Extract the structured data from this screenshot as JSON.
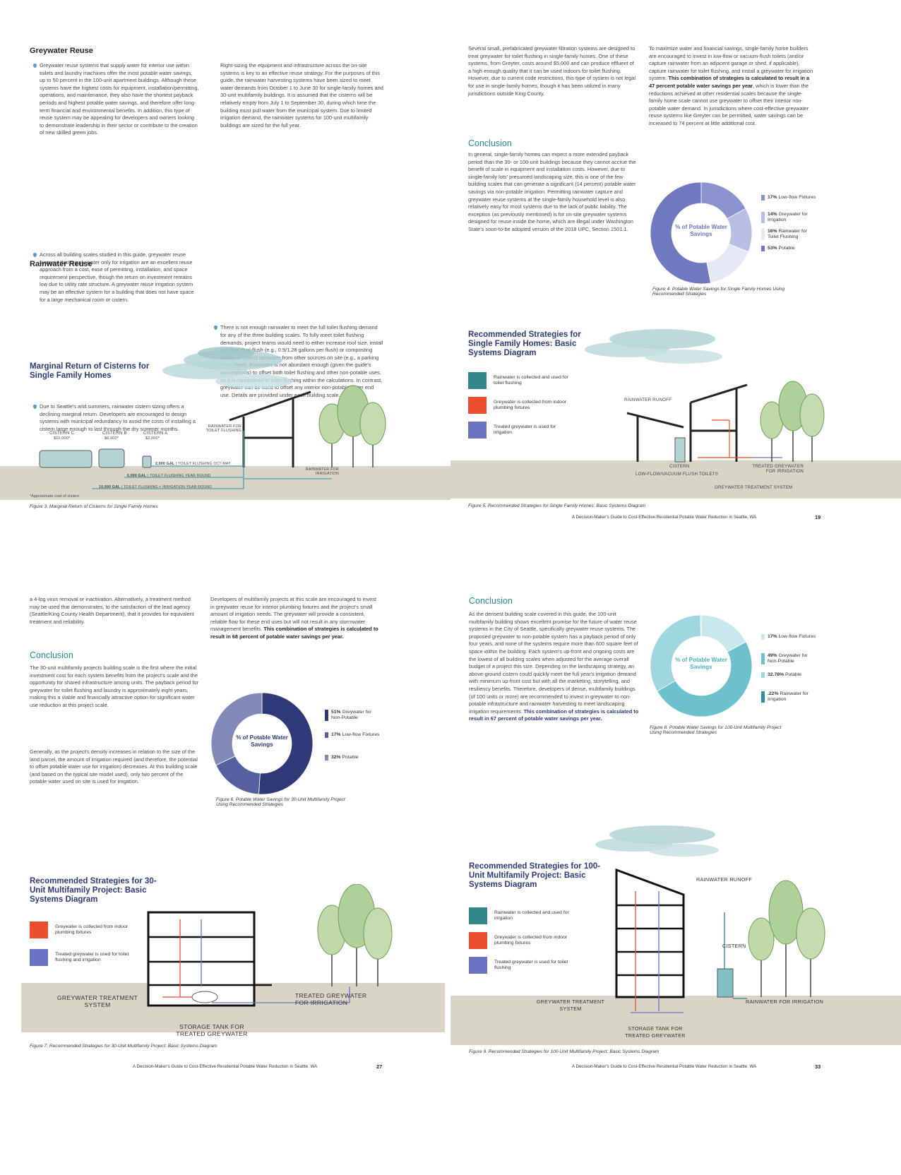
{
  "p18": {
    "heading_greywater": "Greywater Reuse",
    "bullet1": "Greywater reuse systems that supply water for interior use within toilets and laundry machines offer the most potable water savings, up to 50 percent in the 100-unit apartment buildings. Although these systems have the highest costs for equipment, installation/permitting, operations, and maintenance, they also have the shortest payback periods and highest potable water savings, and therefore offer long-term financial and environmental benefits. In addition, this type of reuse system may be appealing for developers and owners looking to demonstrate leadership in their sector or contribute to the creation of new skilled green jobs.",
    "bullet2": "Across all building scales studied in this guide, greywater reuse systems that supply water only for irrigation are an excellent reuse approach from a cost, ease of permitting, installation, and space requirement perspective, though the return on investment remains low due to utility rate structure. A greywater reuse irrigation system may be an effective system for a building that does not have space for a large mechanical room or cistern.",
    "heading_rainwater": "Rainwater Reuse",
    "bullet3": "Due to Seattle's arid summers, rainwater cistern sizing offers a declining marginal return. Developers are encouraged to design systems with municipal redundancy to avoid the costs of installing a cistern large enough to last through the dry summer months.",
    "col2_para": "Right-sizing the equipment and infrastructure across the on-site systems is key to an effective reuse strategy. For the purposes of this guide, the rainwater harvesting systems have been sized to meet water demands from October 1 to June 30 for single-family homes and 30-unit multifamily buildings. It is assumed that the cisterns will be relatively empty from July 1 to September 30, during which time the building must pull water from the municipal system. Due to limited irrigation demand, the rainwater systems for 100-unit multifamily buildings are sized for the full year.",
    "col2_bullet": "There is not enough rainwater to meet the full toilet flushing demand for any of the three building scales. To fully meet toilet flushing demands, project teams would need to either increase roof size, install low-flow dual-flush (e.g., 0.9/1.28 gallons per flush) or composting toilets, or collect rainwater from other sources on site (e.g., a parking lot or shed). Rainwater is not abundant enough (given the guide's assumptions) to offset both toilet flushing and other non-potable uses, so it is constrained to toilet flushing within the calculations. In contrast, greywater can be used to offset any interior non-potable water end use. Details are provided under each building scale.",
    "diagram_title": "Marginal Return of Cisterns for Single Family Homes",
    "cistern_c": "CISTERN C",
    "cistern_c_cost": "$10,000*",
    "cistern_b": "CISTERN B",
    "cistern_b_cost": "$6,000*",
    "cistern_a": "CISTERN A",
    "cistern_a_cost": "$2,000*",
    "rain_toilet": "RAINWATER FOR TOILET FLUSHING",
    "rain_irrigation": "RAINWATER FOR IRRIGATION",
    "flow1_amount": "2,000 GAL",
    "flow1_text": "TOILET FLUSHING OCT-MAY",
    "flow2_amount": "6,000 GAL",
    "flow2_text": "TOILET FLUSHING YEAR ROUND",
    "flow3_amount": "10,000 GAL",
    "flow3_text": "TOILET FLUSHING + IRRIGATION YEAR ROUND",
    "footnote": "*Approximate cost of cistern",
    "caption": "Figure 3. Marginal Return of Cisterns for Single Family Homes"
  },
  "p19": {
    "col1_para": "Several small, prefabricated greywater filtration systems are designed to treat greywater for toilet flushing in single-family homes. One of these systems, from Greyter, costs around $5,000 and can produce effluent of a high enough quality that it can be used indoors for toilet flushing. However, due to current code restrictions, this type of system is not legal for use in single-family homes, though it has been utilized in many jurisdictions outside King County.",
    "conclusion_heading": "Conclusion",
    "conclusion_para": "In general, single-family homes can expect a more extended payback period than the 30- or 100-unit buildings because they cannot accrue the benefit of scale in equipment and installation costs. However, due to single-family lots' presumed landscaping size, this is one of the few building scales that can generate a significant (14 percent) potable water savings via non-potable irrigation. Permitting rainwater capture and greywater reuse systems at the single-family household level is also relatively easy for most systems due to the lack of public liability. The exception (as previously mentioned) is for on-site greywater systems designed for reuse inside the home, which are illegal under Washington State's soon-to-be adopted version of the 2018 UPC, Section 1501.1.",
    "col2_para_a": "To maximize water and financial savings, single-family home builders are encouraged to invest in low-flow or vacuum-flush toilets (and/or capture rainwater from an adjacent garage or shed, if applicable), capture rainwater for toilet flushing, and install a greywater for irrigation system. ",
    "col2_bold": "This combination of strategies is calculated to result in a 47 percent potable water savings per year",
    "col2_para_b": ", which is lower than the reductions achieved at other residential scales because the single-family home scale cannot use greywater to offset their interior non-potable water demand. In jurisdictions where cost-effective greywater reuse systems like Greyter can be permitted, water savings can be increased to 74 percent at little additional cost.",
    "donut_center": "% of Potable Water Savings",
    "fig4_caption": "Figure 4. Potable Water Savings for Single Family Homes Using Recommended Strategies",
    "diagram_title": "Recommended Strategies for Single Family Homes: Basic Systems Diagram",
    "legend1": "Rainwater is collected and used for toilet flushing",
    "legend2": "Greywater is collected from indoor plumbing fixtures",
    "legend3": "Treated greywater is used for irrigation",
    "label_runoff": "RAINWATER RUNOFF",
    "label_cistern": "CISTERN",
    "label_toilets": "LOW-FLOW/VACUUM FLUSH TOILETS",
    "label_treated": "TREATED GREYWATER FOR IRRIGATION",
    "label_treatment": "GREYWATER TREATMENT SYSTEM",
    "fig5_caption": "Figure 5. Recommended Strategies for Single Family Homes: Basic Systems Diagram",
    "footer": "A Decision-Maker's Guide to Cost-Effective Residential Potable Water Reduction in Seattle, WA",
    "page_number": "19"
  },
  "p27": {
    "col1_intro": "a 4-log virus removal or inactivation. Alternatively, a treatment method may be used that demonstrates, to the satisfaction of the lead agency (Seattle/King County Health Department), that it provides for equivalent treatment and reliability.",
    "conclusion_heading": "Conclusion",
    "conclusion_para1": "The 30-unit multifamily projects building scale is the first where the initial investment cost for each system benefits from the project's scale and the opportunity for shared infrastructure among units. The payback period for greywater for toilet flushing and laundry is approximately eight years, making this a viable and financially attractive option for significant water use reduction at this project scale.",
    "conclusion_para2": "Generally, as the project's density increases in relation to the size of the land parcel, the amount of irrigation required (and therefore, the potential to offset potable water use for irrigation) decreases. At this building scale (and based on the typical site model used), only two percent of the potable water used on site is used for irrigation.",
    "col2_para_a": "Developers of multifamily projects at this scale are encouraged to invest in greywater reuse for interior plumbing fixtures and the project's small amount of irrigation needs. The greywater will provide a consistent, reliable flow for these end uses but will not result in any stormwater management benefits. ",
    "col2_bold": "This combination of strategies is calculated to result in 68 percent of potable water savings per year.",
    "donut_center": "% of Potable Water Savings",
    "fig6_caption": "Figure 6. Potable Water Savings for 30-Unit Multifamily Project Using Recommended Strategies",
    "diagram_title": "Recommended Strategies for 30-Unit Multifamily Project: Basic Systems Diagram",
    "legend1": "Greywater is collected from indoor plumbing fixtures",
    "legend2": "Treated greywater is used for toilet flushing and irrigation",
    "label_treatment": "GREYWATER TREATMENT SYSTEM",
    "label_treated": "TREATED GREYWATER FOR IRRIGATION",
    "label_storage": "STORAGE TANK FOR TREATED GREYWATER",
    "fig7_caption": "Figure 7. Recommended Strategies for 30-Unit Multifamily Project: Basic Systems Diagram",
    "footer": "A Decision-Maker's Guide to Cost-Effective Residential Potable Water Reduction in Seattle, WA",
    "page_number": "27"
  },
  "p33": {
    "conclusion_heading": "Conclusion",
    "para_a": "As the densest building scale covered in this guide, the 100-unit multifamily building shows excellent promise for the future of water reuse systems in the City of Seattle, specifically greywater reuse systems. The proposed greywater to non-potable system has a payback period of only four years, and none of the systems require more than 600 square feet of space within the building. Each system's up-front and ongoing costs are the lowest of all building scales when adjusted for the average overall budget of a project this size. Depending on the landscaping strategy, an above-ground cistern could quickly meet the full year's irrigation demand with minimum up-front cost but with all the marketing, storytelling, and resiliency benefits. Therefore, developers of dense, multifamily buildings (of 100 units or more) are recommended to invest in greywater to non-potable infrastructure and rainwater harvesting to meet landscaping irrigation requirements. ",
    "para_bold": "This combination of strategies is calculated to result in 67 percent of potable water savings per year.",
    "donut_center": "% of Potable Water Savings",
    "fig8_caption": "Figure 8. Potable Water Savings for 100-Unit Multifamily Project Using Recommended Strategies",
    "diagram_title": "Recommended Strategies for 100-Unit Multifamily Project: Basic Systems Diagram",
    "legend1": "Rainwater is collected and used for irrigation",
    "legend2": "Greywater is collected from indoor plumbing fixtures",
    "legend3": "Treated greywater is used for toilet flushing",
    "label_runoff": "RAINWATER RUNOFF",
    "label_cistern": "CISTERN",
    "label_treatment": "GREYWATER TREATMENT SYSTEM",
    "label_rain_irrigation": "RAINWATER FOR IRRIGATION",
    "label_storage": "STORAGE TANK FOR TREATED GREYWATER",
    "fig9_caption": "Figure 9. Recommended Strategies for 100-Unit Multifamily Project: Basic Systems Diagram",
    "footer": "A Decision-Maker's Guide to Cost-Effective Residential Potable Water Reduction in Seattle, WA",
    "page_number": "33"
  },
  "chart_data": [
    {
      "type": "pie",
      "title": "% of Potable Water Savings",
      "labels": [
        "Low-flow Fixtures",
        "Greywater for Irrigation",
        "Rainwater for Toilet Flushing",
        "Potable"
      ],
      "values": [
        17,
        14,
        16,
        53
      ],
      "value_labels": [
        "17%",
        "14%",
        "16%",
        "53%"
      ],
      "colors": [
        "#8a93d0",
        "#b9bfe4",
        "#e6e8f6",
        "#6f79c0"
      ]
    },
    {
      "type": "pie",
      "title": "% of Potable Water Savings",
      "labels": [
        "Greywater for Non-Potable",
        "Low-flow Fixtures",
        "Potable"
      ],
      "values": [
        51,
        17,
        32
      ],
      "value_labels": [
        "51%",
        "17%",
        "32%"
      ],
      "colors": [
        "#2e3a78",
        "#56609e",
        "#8288b8"
      ]
    },
    {
      "type": "pie",
      "title": "% of Potable Water Savings",
      "labels": [
        "Low-flow Fixtures",
        "Greywater for Non-Potable",
        "Potable",
        "Rainwater for Irrigation"
      ],
      "values": [
        17,
        49,
        32.78,
        0.22
      ],
      "value_labels": [
        "17%",
        "49%",
        "32.78%",
        ".22%"
      ],
      "colors": [
        "#c9e8ee",
        "#6cc1cc",
        "#9fd6df",
        "#2f8f9c"
      ]
    }
  ]
}
